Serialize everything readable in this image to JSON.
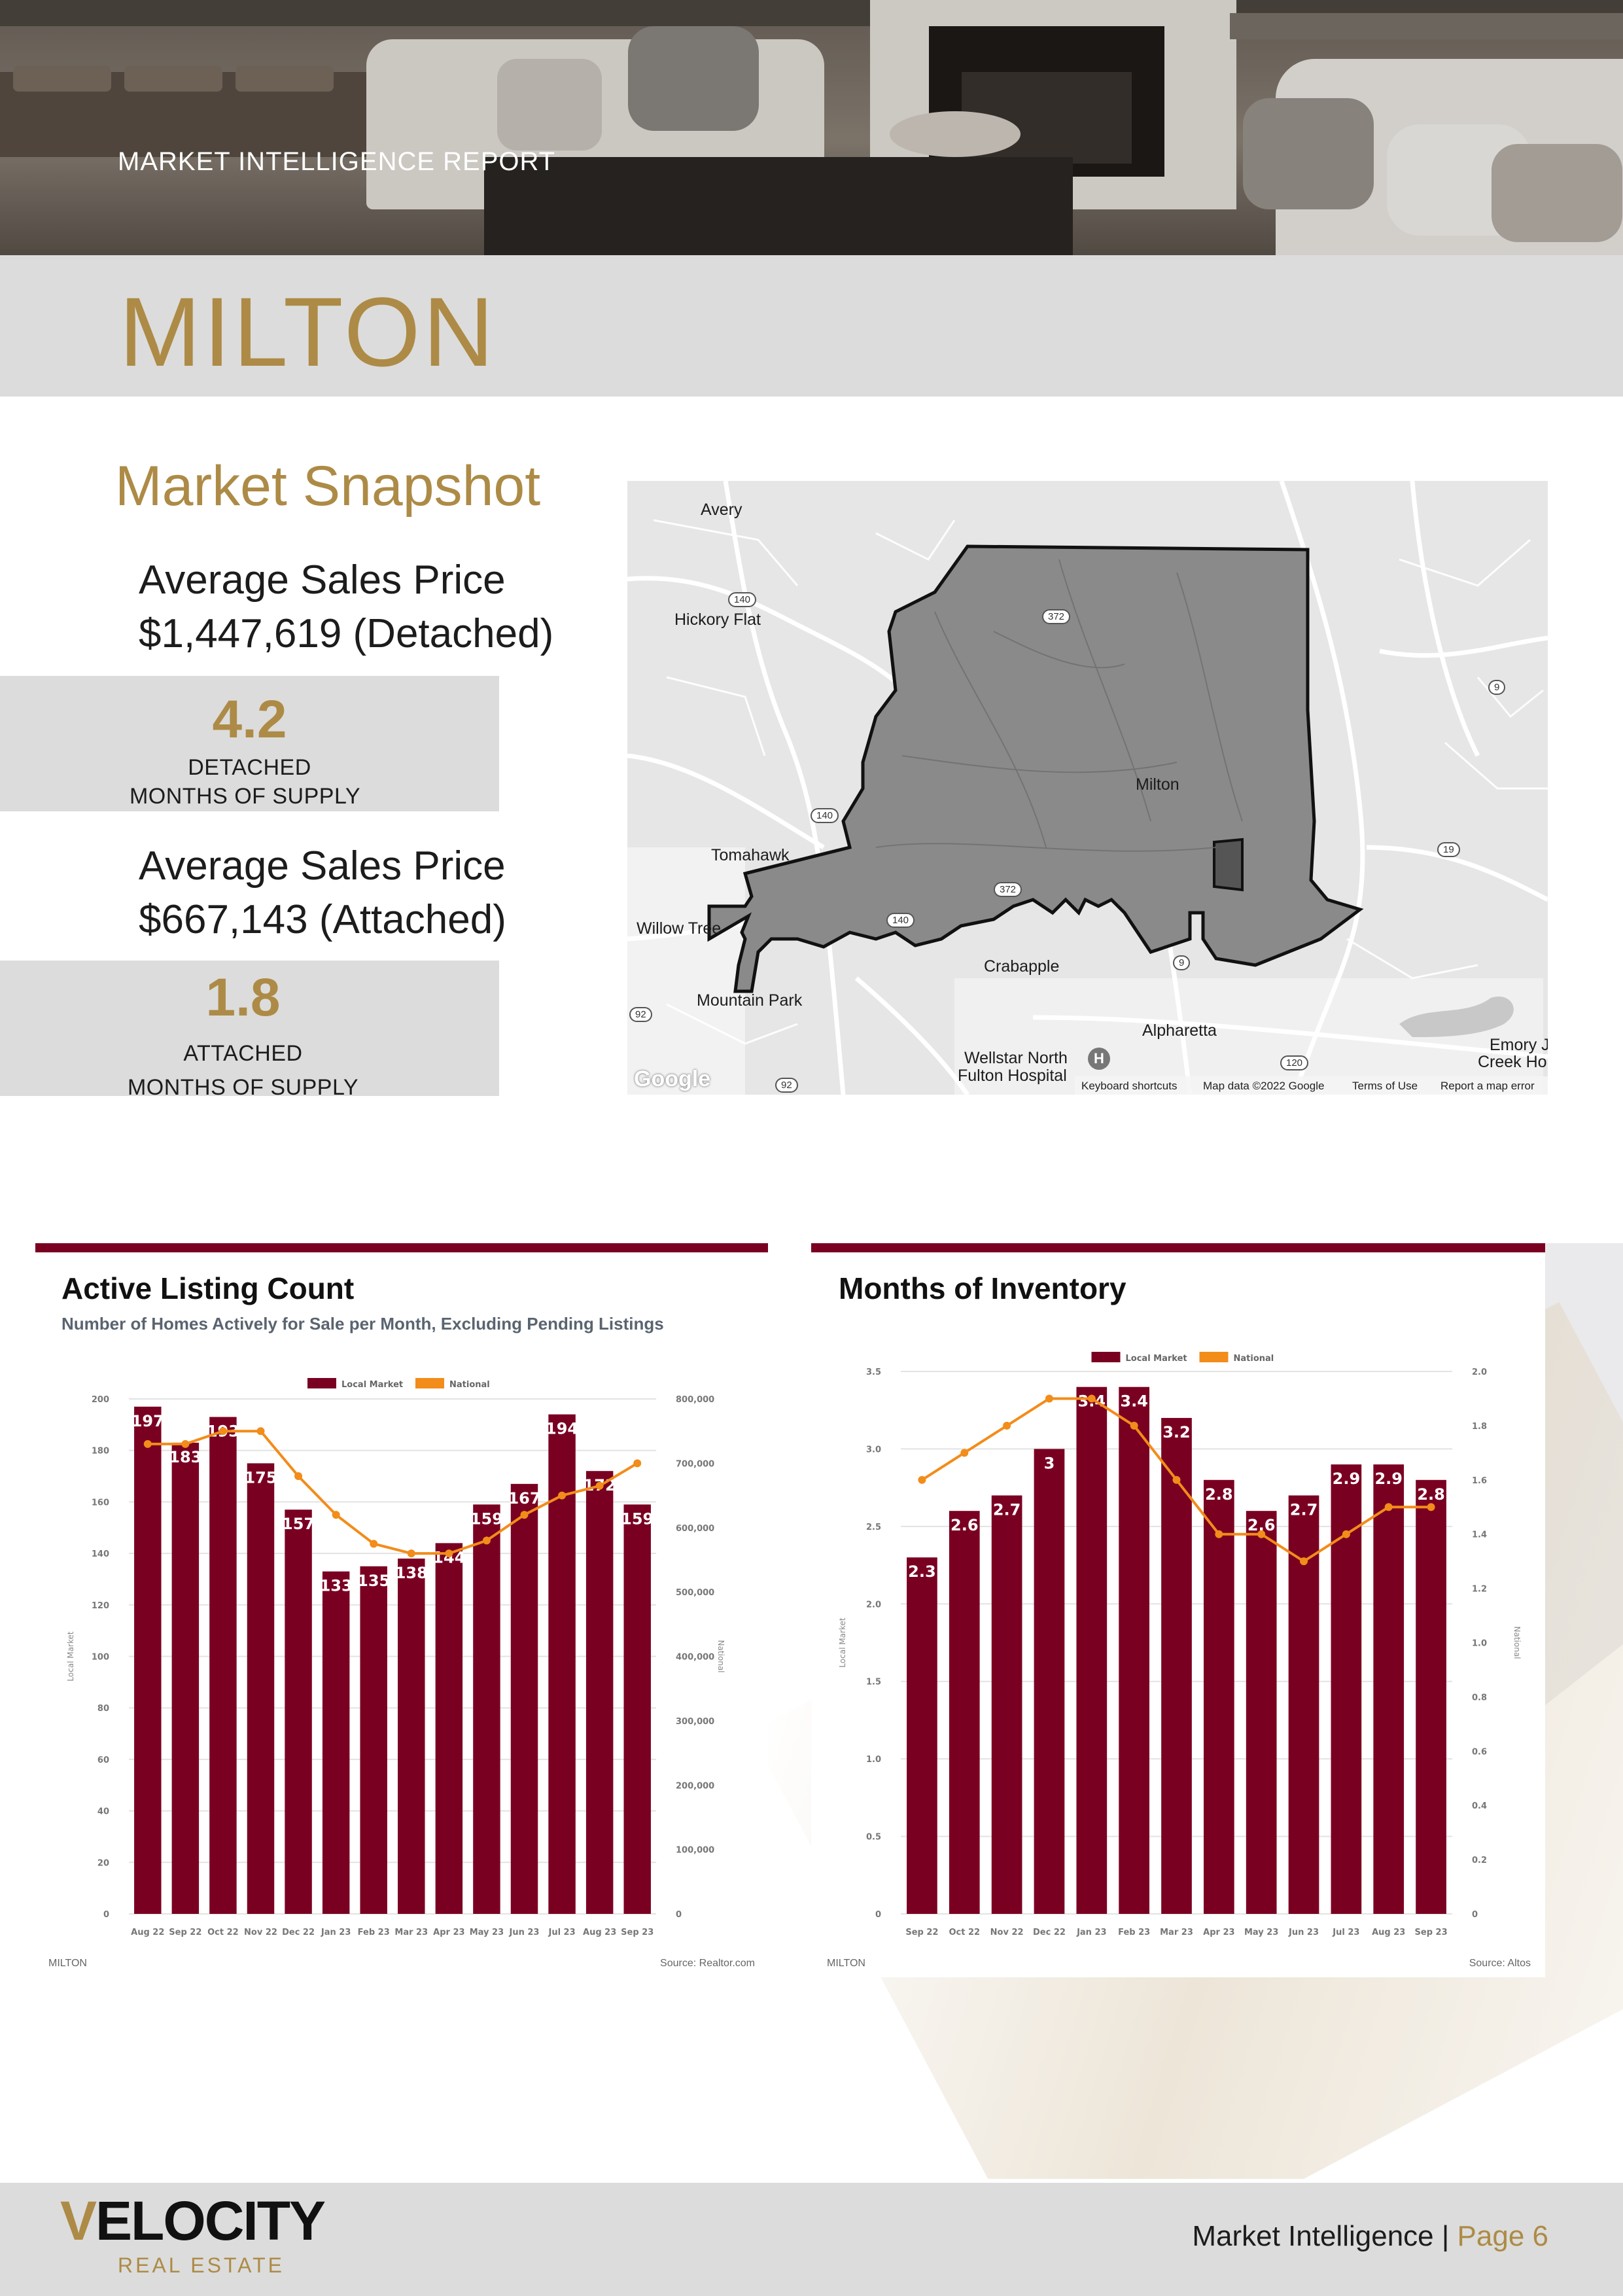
{
  "header": {
    "report_label": "MARKET INTELLIGENCE REPORT",
    "city": "MILTON"
  },
  "snapshot": {
    "title": "Market Snapshot",
    "detached": {
      "price_label": "Average Sales Price",
      "price_value": "$1,447,619 (Detached)",
      "supply_number": "4.2",
      "supply_line1": "DETACHED",
      "supply_line2": "MONTHS OF SUPPLY"
    },
    "attached": {
      "price_label": "Average Sales Price",
      "price_value": "$667,143 (Attached)",
      "supply_number": "1.8",
      "supply_line1": "ATTACHED",
      "supply_line2": "MONTHS OF SUPPLY"
    }
  },
  "map": {
    "places": [
      "Avery",
      "Hickory Flat",
      "Milton",
      "Tomahawk",
      "Willow Tree",
      "Crabapple",
      "Mountain Park",
      "Alpharetta",
      "Wellstar North",
      "Fulton Hospital",
      "Emory J",
      "Creek Ho"
    ],
    "routes": [
      "140",
      "372",
      "9",
      "140",
      "19",
      "372",
      "140",
      "9",
      "92",
      "120",
      "92"
    ],
    "brand": "Google",
    "footer": [
      "Keyboard shortcuts",
      "Map data ©2022 Google",
      "Terms of Use",
      "Report a map error"
    ],
    "boundary_fill": "#8a8a8a"
  },
  "charts": {
    "active_listing": {
      "title": "Active Listing Count",
      "subtitle": "Number of Homes Actively for Sale per Month, Excluding Pending Listings",
      "city": "MILTON",
      "source": "Source: Realtor.com"
    },
    "months_inventory": {
      "title": "Months of Inventory",
      "city": "MILTON",
      "source": "Source: Altos"
    }
  },
  "chart_data": [
    {
      "type": "bar",
      "title": "Active Listing Count",
      "categories": [
        "Aug 22",
        "Sep 22",
        "Oct 22",
        "Nov 22",
        "Dec 22",
        "Jan 23",
        "Feb 23",
        "Mar 23",
        "Apr 23",
        "May 23",
        "Jun 23",
        "Jul 23",
        "Aug 23",
        "Sep 23"
      ],
      "series": [
        {
          "name": "Local Market",
          "kind": "bar",
          "axis": "left",
          "color": "#7a0022",
          "values": [
            197,
            183,
            193,
            175,
            157,
            133,
            135,
            138,
            144,
            159,
            167,
            194,
            172,
            159
          ]
        },
        {
          "name": "National",
          "kind": "line",
          "axis": "right",
          "color": "#f28c1a",
          "values": [
            730000,
            730000,
            750000,
            750000,
            680000,
            620000,
            575000,
            560000,
            560000,
            580000,
            620000,
            650000,
            665000,
            700000
          ]
        }
      ],
      "ylabel": "Local Market",
      "y2label": "National",
      "ylim": [
        0,
        200
      ],
      "yticks": [
        0,
        20,
        40,
        60,
        80,
        100,
        120,
        140,
        160,
        180,
        200
      ],
      "y2lim": [
        0,
        800000
      ],
      "y2ticks": [
        "0",
        "100,000",
        "200,000",
        "300,000",
        "400,000",
        "500,000",
        "600,000",
        "700,000",
        "800,000"
      ],
      "legend": "top-center",
      "grid": true
    },
    {
      "type": "bar",
      "title": "Months of Inventory",
      "categories": [
        "Sep 22",
        "Oct 22",
        "Nov 22",
        "Dec 22",
        "Jan 23",
        "Feb 23",
        "Mar 23",
        "Apr 23",
        "May 23",
        "Jun 23",
        "Jul 23",
        "Aug 23",
        "Sep 23"
      ],
      "series": [
        {
          "name": "Local Market",
          "kind": "bar",
          "axis": "left",
          "color": "#7a0022",
          "values": [
            2.3,
            2.6,
            2.7,
            3,
            3.4,
            3.4,
            3.2,
            2.8,
            2.6,
            2.7,
            2.9,
            2.9,
            2.8
          ]
        },
        {
          "name": "National",
          "kind": "line",
          "axis": "right",
          "color": "#f28c1a",
          "values": [
            1.6,
            1.7,
            1.8,
            1.9,
            1.9,
            1.8,
            1.6,
            1.4,
            1.4,
            1.3,
            1.4,
            1.5,
            1.5
          ]
        }
      ],
      "ylabel": "Local Market",
      "y2label": "National",
      "ylim": [
        0,
        3.5
      ],
      "yticks": [
        "0",
        "0.5",
        "1.0",
        "1.5",
        "2.0",
        "2.5",
        "3.0",
        "3.5"
      ],
      "y2lim": [
        0,
        2.0
      ],
      "y2ticks": [
        "0",
        "0.2",
        "0.4",
        "0.6",
        "0.8",
        "1.0",
        "1.2",
        "1.4",
        "1.6",
        "1.8",
        "2.0"
      ],
      "legend": "top-center",
      "grid": true
    }
  ],
  "footer": {
    "logo_first": "V",
    "logo_rest": "ELOCITY",
    "logo_sub": "REAL ESTATE",
    "label": "Market Intelligence | ",
    "page": "Page 6"
  },
  "colors": {
    "gold": "#ad8b46",
    "burgundy": "#7a0022",
    "orange": "#f28c1a",
    "band_gray": "#dcdcdc"
  }
}
